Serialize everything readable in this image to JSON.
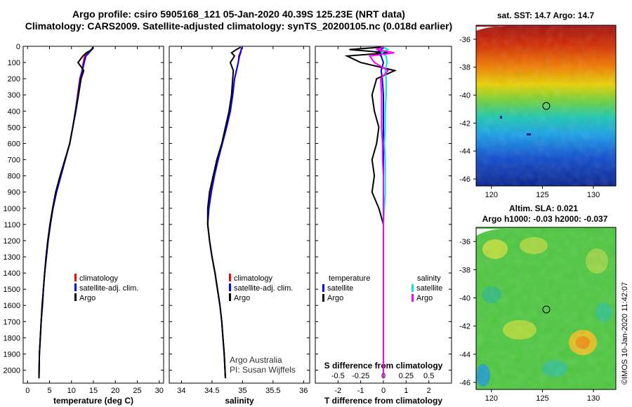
{
  "title": {
    "line1": "Argo profile: csiro 5905168_121 05-Jan-2020 40.39S 125.23E (NRT data)",
    "line2": "Climatology: CARS2009. Satellite-adjusted climatology: synTS_20200105.nc (0.018d earlier)"
  },
  "map_sst": {
    "title": "sat. SST: 14.7 Argo: 14.7",
    "xlabels": [
      "120",
      "125",
      "130"
    ],
    "ylabels": [
      "-36",
      "-38",
      "-40",
      "-42",
      "-44",
      "-46"
    ]
  },
  "map_sla": {
    "title1": "Altim. SLA: 0.021",
    "title2": "Argo h1000: -0.03 h2000: -0.037",
    "xlabels": [
      "120",
      "125",
      "130"
    ],
    "ylabels": [
      "-36",
      "-38",
      "-40",
      "-42",
      "-44",
      "-46"
    ]
  },
  "credit": {
    "org": "Argo Australia",
    "pi": "PI: Susan Wijffels"
  },
  "watermark": "©IMOS 10-Jan-2020 11:42:07",
  "colors": {
    "climatology": "#ff0000",
    "satellite": "#0000ff",
    "argo": "#000000",
    "sal_satellite": "#00e5ee",
    "sal_argo": "#ff00ff"
  },
  "chart_data": [
    {
      "type": "line",
      "xlabel": "temperature (deg C)",
      "ylabel": "",
      "xlim": [
        -1,
        31
      ],
      "ylim": [
        2080,
        0
      ],
      "xticks": [
        0,
        5,
        10,
        15,
        20,
        25,
        30
      ],
      "xtick_labels": [
        "0",
        "5",
        "10",
        "15",
        "20",
        "25",
        "30"
      ],
      "yticks": [
        0,
        100,
        200,
        300,
        400,
        500,
        600,
        700,
        800,
        900,
        1000,
        1100,
        1200,
        1300,
        1400,
        1500,
        1600,
        1700,
        1800,
        1900,
        2000
      ],
      "legend": [
        "climatology",
        "satellite-adj. clim.",
        "Argo"
      ],
      "legend_position": "lower-center",
      "series": [
        {
          "name": "climatology",
          "color": "#ff0000",
          "x": [
            15.0,
            14.5,
            13.8,
            13.0,
            12.7,
            12.4,
            11.9,
            11.4,
            10.9,
            10.3,
            9.6,
            8.6,
            7.6,
            6.6,
            5.8,
            5.2,
            4.7,
            4.3,
            3.9,
            3.6,
            3.4,
            3.1,
            2.9,
            2.7,
            2.6
          ],
          "depth": [
            5,
            20,
            40,
            60,
            100,
            150,
            200,
            300,
            400,
            500,
            600,
            700,
            800,
            900,
            1000,
            1100,
            1200,
            1300,
            1400,
            1500,
            1600,
            1700,
            1800,
            1900,
            2050
          ]
        },
        {
          "name": "satellite-adj. clim.",
          "color": "#0000ff",
          "x": [
            14.9,
            14.6,
            14.0,
            13.3,
            12.9,
            12.5,
            12.0,
            11.5,
            10.9,
            10.3,
            9.6,
            8.6,
            7.6,
            6.6,
            5.8,
            5.2,
            4.7,
            4.3,
            3.9,
            3.6,
            3.4,
            3.1,
            2.9,
            2.7,
            2.6
          ],
          "depth": [
            5,
            20,
            40,
            60,
            100,
            150,
            200,
            300,
            400,
            500,
            600,
            700,
            800,
            900,
            1000,
            1100,
            1200,
            1300,
            1400,
            1500,
            1600,
            1700,
            1800,
            1900,
            2050
          ]
        },
        {
          "name": "Argo",
          "color": "#000000",
          "x": [
            14.9,
            14.7,
            13.4,
            12.6,
            11.5,
            12.8,
            12.2,
            11.6,
            11.0,
            10.3,
            9.6,
            8.5,
            7.4,
            6.4,
            5.7,
            5.1,
            4.6,
            4.2,
            3.9,
            3.6,
            3.3,
            3.1,
            2.9,
            2.7,
            2.6
          ],
          "depth": [
            5,
            20,
            40,
            60,
            100,
            150,
            200,
            300,
            400,
            500,
            600,
            700,
            800,
            900,
            1000,
            1100,
            1200,
            1300,
            1400,
            1500,
            1600,
            1700,
            1800,
            1900,
            2050
          ]
        }
      ]
    },
    {
      "type": "line",
      "xlabel": "salinity",
      "ylabel": "",
      "xlim": [
        33.8,
        36.1
      ],
      "ylim": [
        2080,
        0
      ],
      "xticks": [
        34,
        34.5,
        35,
        35.5,
        36
      ],
      "xtick_labels": [
        "34",
        "34.5",
        "35",
        "35.5",
        "36"
      ],
      "yticks": [
        0,
        100,
        200,
        300,
        400,
        500,
        600,
        700,
        800,
        900,
        1000,
        1100,
        1200,
        1300,
        1400,
        1500,
        1600,
        1700,
        1800,
        1900,
        2000
      ],
      "legend": [
        "climatology",
        "satellite-adj. clim.",
        "Argo"
      ],
      "legend_position": "lower-center",
      "series": [
        {
          "name": "climatology",
          "color": "#ff0000",
          "x": [
            35.0,
            34.98,
            34.96,
            34.94,
            34.93,
            34.9,
            34.87,
            34.84,
            34.8,
            34.74,
            34.67,
            34.6,
            34.54,
            34.48,
            34.44,
            34.43,
            34.46,
            34.5,
            34.55,
            34.59,
            34.63,
            34.66,
            34.68,
            34.7,
            34.72
          ],
          "depth": [
            5,
            20,
            40,
            60,
            100,
            150,
            200,
            300,
            400,
            500,
            600,
            700,
            800,
            900,
            1000,
            1100,
            1200,
            1300,
            1400,
            1500,
            1600,
            1700,
            1800,
            1900,
            2050
          ]
        },
        {
          "name": "satellite-adj. clim.",
          "color": "#0000ff",
          "x": [
            34.99,
            34.98,
            34.97,
            34.95,
            34.93,
            34.9,
            34.87,
            34.84,
            34.8,
            34.74,
            34.67,
            34.6,
            34.54,
            34.49,
            34.45,
            34.43,
            34.46,
            34.5,
            34.55,
            34.59,
            34.63,
            34.66,
            34.68,
            34.7,
            34.72
          ],
          "depth": [
            5,
            20,
            40,
            60,
            100,
            150,
            200,
            300,
            400,
            500,
            600,
            700,
            800,
            900,
            1000,
            1100,
            1200,
            1300,
            1400,
            1500,
            1600,
            1700,
            1800,
            1900,
            2050
          ]
        },
        {
          "name": "Argo",
          "color": "#000000",
          "x": [
            34.97,
            34.9,
            34.82,
            34.87,
            34.8,
            34.85,
            34.84,
            34.82,
            34.78,
            34.72,
            34.66,
            34.58,
            34.52,
            34.46,
            34.43,
            34.43,
            34.46,
            34.5,
            34.55,
            34.59,
            34.63,
            34.66,
            34.68,
            34.7,
            34.72
          ],
          "depth": [
            5,
            20,
            40,
            60,
            100,
            150,
            200,
            300,
            400,
            500,
            600,
            700,
            800,
            900,
            1000,
            1100,
            1200,
            1300,
            1400,
            1500,
            1600,
            1700,
            1800,
            1900,
            2050
          ]
        }
      ]
    },
    {
      "type": "line",
      "xlabel": "T difference from climatology",
      "ylabel": "",
      "xlim": [
        -3.0,
        3.0
      ],
      "ylim": [
        2080,
        0
      ],
      "xticks": [
        -2,
        -1,
        0,
        1,
        2
      ],
      "xtick_labels": [
        "-2",
        "-1",
        "0",
        "1",
        "2"
      ],
      "secondary_xlabel": "S difference from climatology",
      "secondary_xticks": [
        -0.5,
        -0.25,
        0,
        0.25,
        0.5
      ],
      "secondary_xtick_labels": [
        "-0.5",
        "-0.25",
        "0",
        "0.25",
        "0.5"
      ],
      "secondary_xlim": [
        -0.75,
        0.75
      ],
      "yticks": [
        0,
        100,
        200,
        300,
        400,
        500,
        600,
        700,
        800,
        900,
        1000,
        1100,
        1200,
        1300,
        1400,
        1500,
        1600,
        1700,
        1800,
        1900,
        2000
      ],
      "legend": [
        "temperature satellite",
        "temperature Argo",
        "salinity satellite",
        "salinity Argo"
      ],
      "legend_position": "lower-center",
      "series": [
        {
          "name": "temperature satellite",
          "color": "#0000ff",
          "axis": "T",
          "x": [
            0,
            -0.1,
            -0.3,
            -0.1,
            0,
            -0.1,
            -0.05,
            0,
            0,
            0,
            0,
            0,
            0,
            0,
            0,
            0,
            0,
            0,
            0,
            0
          ],
          "depth": [
            5,
            20,
            40,
            60,
            100,
            150,
            200,
            300,
            400,
            500,
            600,
            700,
            800,
            900,
            1000,
            1100,
            1200,
            1500,
            1800,
            2050
          ]
        },
        {
          "name": "temperature Argo",
          "color": "#000000",
          "axis": "T",
          "x": [
            -0.1,
            -1.5,
            0.2,
            -1.6,
            -1.0,
            0.5,
            -0.3,
            -0.5,
            -0.4,
            -0.2,
            -0.3,
            -0.5,
            -0.4,
            -0.5,
            -0.2,
            0,
            0,
            0,
            0,
            0
          ],
          "depth": [
            5,
            20,
            40,
            60,
            100,
            150,
            200,
            300,
            400,
            500,
            600,
            700,
            800,
            900,
            1000,
            1100,
            1200,
            1500,
            1800,
            2050
          ]
        },
        {
          "name": "salinity satellite",
          "color": "#00e5ee",
          "axis": "S",
          "x": [
            0,
            0.05,
            -0.02,
            0.03,
            0.04,
            0.02,
            0.03,
            0.03,
            0.02,
            0.02,
            0.01,
            0.02,
            0.02,
            0.02,
            0.01,
            0,
            0,
            0,
            0,
            0
          ],
          "depth": [
            5,
            20,
            40,
            60,
            100,
            150,
            200,
            300,
            400,
            500,
            600,
            700,
            800,
            900,
            1000,
            1100,
            1200,
            1500,
            1800,
            2050
          ]
        },
        {
          "name": "salinity Argo",
          "color": "#ff00ff",
          "axis": "S",
          "x": [
            0,
            -0.08,
            0.12,
            -0.15,
            -0.1,
            0.05,
            -0.03,
            -0.02,
            -0.02,
            -0.02,
            -0.01,
            -0.01,
            0,
            0,
            0,
            0,
            0,
            0,
            0,
            0
          ],
          "depth": [
            5,
            20,
            40,
            60,
            100,
            150,
            200,
            300,
            400,
            500,
            600,
            700,
            800,
            900,
            1000,
            1100,
            1200,
            1500,
            1800,
            2050
          ]
        }
      ]
    },
    {
      "type": "heatmap",
      "title": "sat. SST: 14.7 Argo: 14.7",
      "xlabel": "",
      "ylabel": "",
      "xlim": [
        118.5,
        132.2
      ],
      "ylim": [
        -46.5,
        -35.0
      ],
      "xticks": [
        120,
        125,
        130
      ],
      "yticks": [
        -36,
        -38,
        -40,
        -42,
        -44,
        -46
      ],
      "colormap": "jet",
      "argo_position": [
        125.23,
        -40.39
      ]
    },
    {
      "type": "heatmap",
      "title": "Altim. SLA: 0.021",
      "xlabel": "",
      "ylabel": "",
      "xlim": [
        118.5,
        132.2
      ],
      "ylim": [
        -46.5,
        -35.0
      ],
      "xticks": [
        120,
        125,
        130
      ],
      "yticks": [
        -36,
        -38,
        -40,
        -42,
        -44,
        -46
      ],
      "colormap": "jet",
      "argo_position": [
        125.23,
        -40.39
      ]
    }
  ]
}
